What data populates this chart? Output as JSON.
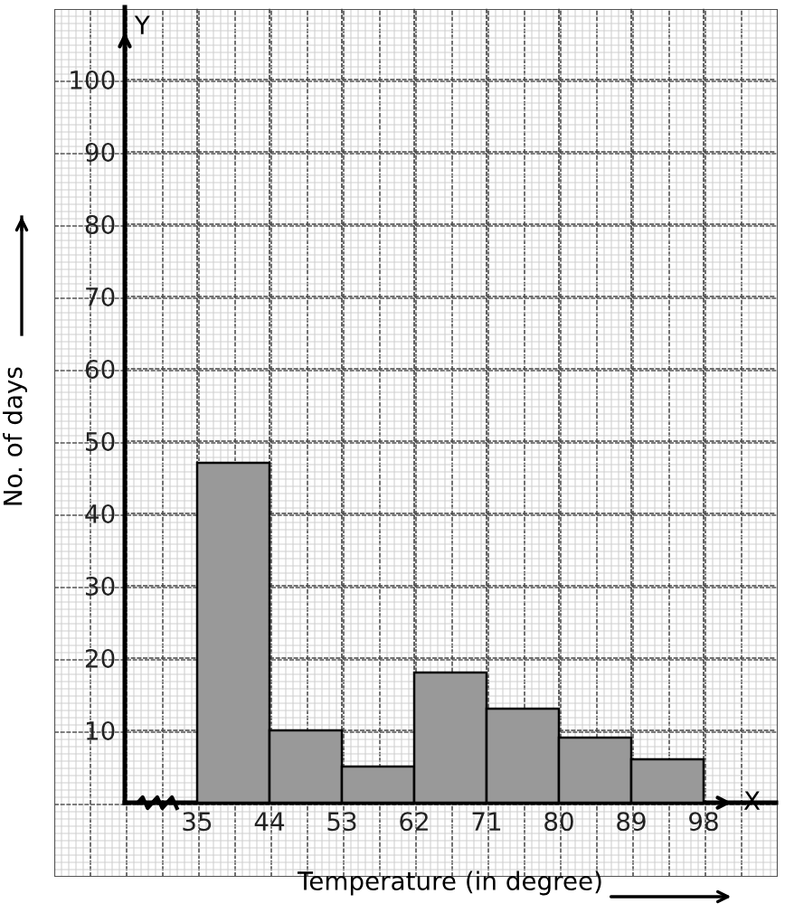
{
  "chart_data": {
    "type": "histogram",
    "bins": [
      35,
      44,
      53,
      62,
      71,
      80,
      89,
      98
    ],
    "values": [
      47,
      10,
      5,
      18,
      13,
      9,
      6
    ],
    "color": "#999999",
    "xlabel": "Temperature (in degree)",
    "ylabel": "No. of days",
    "xlim": [
      26,
      107
    ],
    "ylim": [
      0,
      110
    ],
    "xticks": [
      35,
      44,
      53,
      62,
      71,
      80,
      89,
      98
    ],
    "yticks": [
      10,
      20,
      30,
      40,
      50,
      60,
      70,
      80,
      90,
      100
    ],
    "grid": true,
    "annotations": [
      "X",
      "Y"
    ]
  }
}
